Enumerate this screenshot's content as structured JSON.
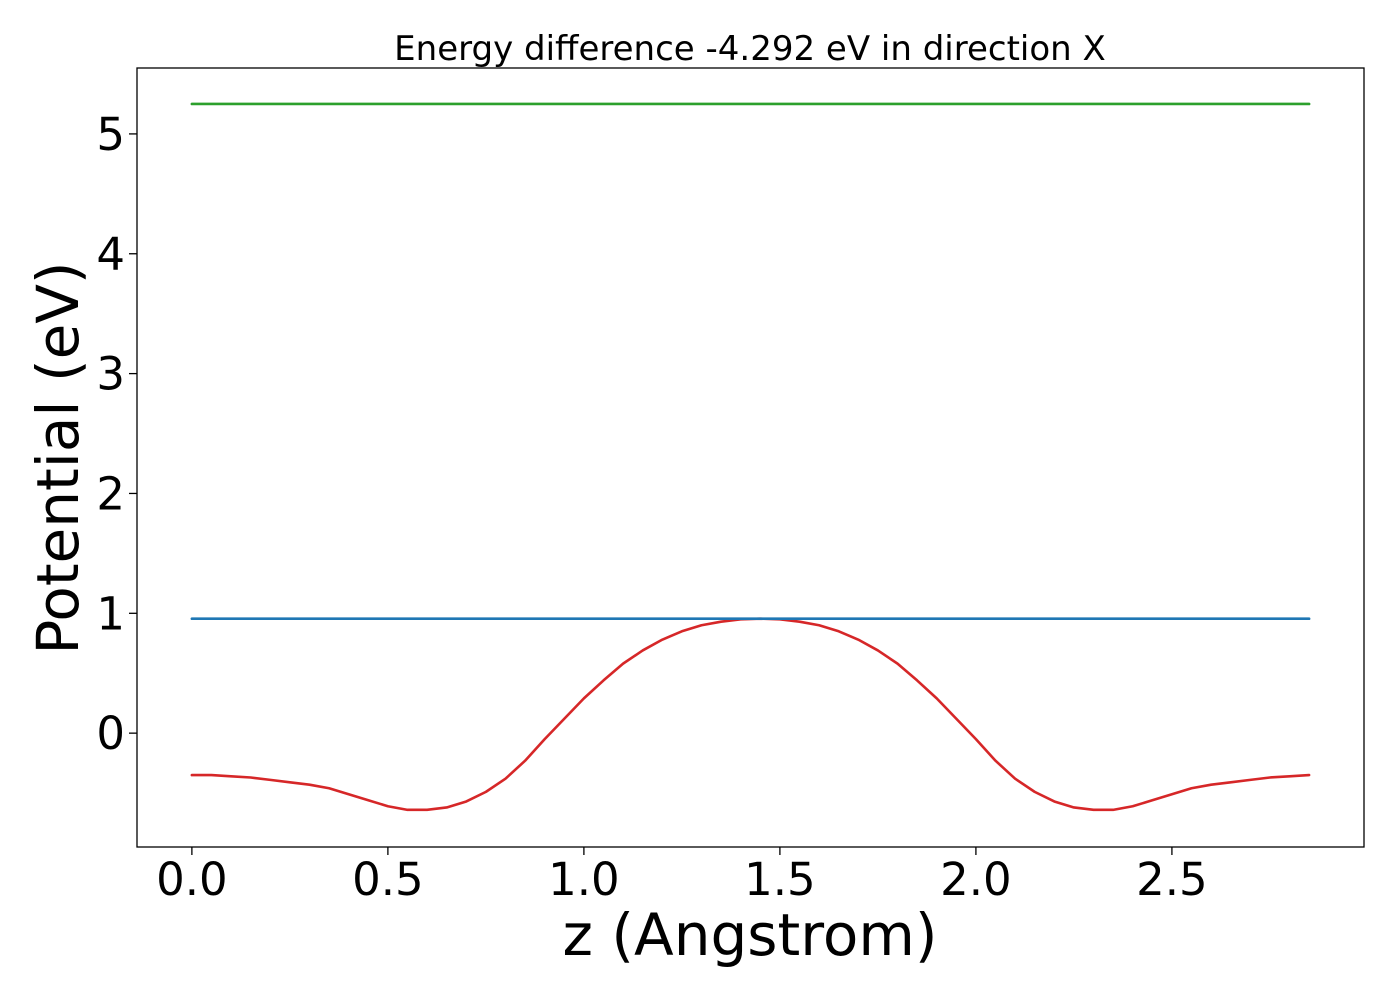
{
  "chart_data": {
    "type": "line",
    "title": "Energy difference -4.292 eV in direction X",
    "xlabel": "z (Angstrom)",
    "ylabel": "Potential (eV)",
    "xlim": [
      -0.14,
      2.99
    ],
    "ylim": [
      -0.95,
      5.55
    ],
    "x_ticks": [
      0.0,
      0.5,
      1.0,
      1.5,
      2.0,
      2.5
    ],
    "x_tick_labels": [
      "0.0",
      "0.5",
      "1.0",
      "1.5",
      "2.0",
      "2.5"
    ],
    "y_ticks": [
      0,
      1,
      2,
      3,
      4,
      5
    ],
    "y_tick_labels": [
      "0",
      "1",
      "2",
      "3",
      "4",
      "5"
    ],
    "grid": false,
    "series": [
      {
        "color": "#d62728",
        "x": [
          0.0,
          0.05,
          0.1,
          0.15,
          0.2,
          0.25,
          0.3,
          0.35,
          0.4,
          0.45,
          0.5,
          0.55,
          0.6,
          0.65,
          0.7,
          0.75,
          0.8,
          0.85,
          0.9,
          0.95,
          1.0,
          1.05,
          1.1,
          1.15,
          1.2,
          1.25,
          1.3,
          1.35,
          1.4,
          1.45,
          1.5,
          1.55,
          1.6,
          1.65,
          1.7,
          1.75,
          1.8,
          1.85,
          1.9,
          1.95,
          2.0,
          2.05,
          2.1,
          2.15,
          2.2,
          2.25,
          2.3,
          2.35,
          2.4,
          2.45,
          2.5,
          2.55,
          2.6,
          2.65,
          2.7,
          2.75,
          2.8,
          2.85
        ],
        "y": [
          -0.35,
          -0.35,
          -0.36,
          -0.37,
          -0.39,
          -0.41,
          -0.43,
          -0.46,
          -0.51,
          -0.56,
          -0.61,
          -0.64,
          -0.64,
          -0.62,
          -0.57,
          -0.49,
          -0.38,
          -0.23,
          -0.05,
          0.12,
          0.29,
          0.44,
          0.58,
          0.69,
          0.78,
          0.85,
          0.9,
          0.93,
          0.95,
          0.955,
          0.95,
          0.93,
          0.9,
          0.85,
          0.78,
          0.69,
          0.58,
          0.44,
          0.29,
          0.12,
          -0.05,
          -0.23,
          -0.38,
          -0.49,
          -0.57,
          -0.62,
          -0.64,
          -0.64,
          -0.61,
          -0.56,
          -0.51,
          -0.46,
          -0.43,
          -0.41,
          -0.39,
          -0.37,
          -0.36,
          -0.35
        ]
      },
      {
        "color": "#1f77b4",
        "x": [
          0.0,
          2.85
        ],
        "y": [
          0.955,
          0.955
        ]
      },
      {
        "color": "#2ca02c",
        "x": [
          0.0,
          2.85
        ],
        "y": [
          5.25,
          5.25
        ]
      }
    ]
  }
}
